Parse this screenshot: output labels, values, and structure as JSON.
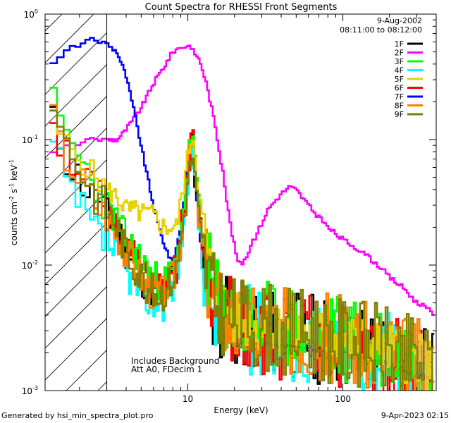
{
  "chart_data": {
    "type": "line",
    "title": "Count Spectra for RHESSI Front Segments",
    "xlabel": "Energy (keV)",
    "ylabel": "counts cm^-2 s^-1 keV^-1",
    "xscale": "log",
    "yscale": "log",
    "xlim": [
      1.2,
      400
    ],
    "ylim": [
      0.001,
      1
    ],
    "x_ticks": [
      {
        "value": 10,
        "label": "10"
      },
      {
        "value": 100,
        "label": "100"
      }
    ],
    "y_ticks": [
      {
        "value": 0.001,
        "base": "10",
        "exp": "-3"
      },
      {
        "value": 0.01,
        "base": "10",
        "exp": "-2"
      },
      {
        "value": 0.1,
        "base": "10",
        "exp": "-1"
      },
      {
        "value": 1,
        "base": "10",
        "exp": "0"
      }
    ],
    "shaded_region": {
      "x_range": [
        1.2,
        3.0
      ],
      "pattern": "hatched"
    },
    "legend_position": "top-right",
    "date": "9-Aug-2002",
    "time_range": "08:11:00 to 08:12:00",
    "annotations": [
      "Includes Background",
      "Att A0, FDecim 1"
    ],
    "series": [
      {
        "name": "1F",
        "color": "#000000",
        "seed": 11,
        "noise": 0.33,
        "points": [
          [
            1.3,
            0.15
          ],
          [
            1.5,
            0.1
          ],
          [
            1.7,
            0.065
          ],
          [
            2.0,
            0.05
          ],
          [
            2.4,
            0.035
          ],
          [
            3.0,
            0.025
          ],
          [
            3.5,
            0.02
          ],
          [
            4.0,
            0.013
          ],
          [
            5.0,
            0.008
          ],
          [
            6.0,
            0.006
          ],
          [
            7.0,
            0.006
          ],
          [
            8.5,
            0.009
          ],
          [
            10.0,
            0.05
          ],
          [
            10.7,
            0.1
          ],
          [
            11.5,
            0.03
          ],
          [
            13.0,
            0.008
          ],
          [
            15.0,
            0.004
          ],
          [
            20.0,
            0.003
          ],
          [
            30.0,
            0.0028
          ],
          [
            50.0,
            0.0025
          ],
          [
            100.0,
            0.0022
          ],
          [
            200.0,
            0.0018
          ],
          [
            380.0,
            0.0013
          ]
        ]
      },
      {
        "name": "2F",
        "color": "#ff00ff",
        "seed": 0,
        "noise": 0.04,
        "points": [
          [
            1.3,
            0.075
          ],
          [
            1.5,
            0.085
          ],
          [
            2.0,
            0.095
          ],
          [
            2.5,
            0.1
          ],
          [
            3.0,
            0.1
          ],
          [
            3.5,
            0.1
          ],
          [
            4.0,
            0.12
          ],
          [
            5.0,
            0.18
          ],
          [
            6.0,
            0.28
          ],
          [
            7.0,
            0.38
          ],
          [
            8.0,
            0.5
          ],
          [
            9.0,
            0.55
          ],
          [
            10.0,
            0.55
          ],
          [
            11.0,
            0.5
          ],
          [
            12.0,
            0.42
          ],
          [
            13.0,
            0.3
          ],
          [
            14.0,
            0.2
          ],
          [
            15.0,
            0.13
          ],
          [
            16.0,
            0.08
          ],
          [
            17.0,
            0.05
          ],
          [
            18.0,
            0.03
          ],
          [
            19.0,
            0.02
          ],
          [
            20.0,
            0.014
          ],
          [
            21.0,
            0.011
          ],
          [
            22.0,
            0.01
          ],
          [
            24.0,
            0.012
          ],
          [
            28.0,
            0.018
          ],
          [
            33.0,
            0.028
          ],
          [
            40.0,
            0.037
          ],
          [
            45.0,
            0.042
          ],
          [
            50.0,
            0.04
          ],
          [
            60.0,
            0.03
          ],
          [
            70.0,
            0.024
          ],
          [
            80.0,
            0.02
          ],
          [
            100.0,
            0.016
          ],
          [
            120.0,
            0.014
          ],
          [
            140.0,
            0.012
          ],
          [
            170.0,
            0.01
          ],
          [
            200.0,
            0.008
          ],
          [
            250.0,
            0.0065
          ],
          [
            300.0,
            0.005
          ],
          [
            350.0,
            0.0045
          ],
          [
            390.0,
            0.004
          ]
        ]
      },
      {
        "name": "3F",
        "color": "#00ff00",
        "seed": 23,
        "noise": 0.33,
        "points": [
          [
            1.3,
            0.22
          ],
          [
            1.5,
            0.12
          ],
          [
            1.7,
            0.1
          ],
          [
            2.0,
            0.07
          ],
          [
            2.4,
            0.05
          ],
          [
            3.0,
            0.03
          ],
          [
            3.5,
            0.022
          ],
          [
            4.0,
            0.016
          ],
          [
            5.0,
            0.011
          ],
          [
            6.0,
            0.008
          ],
          [
            7.0,
            0.007
          ],
          [
            8.5,
            0.01
          ],
          [
            10.0,
            0.06
          ],
          [
            10.7,
            0.12
          ],
          [
            11.5,
            0.035
          ],
          [
            13.0,
            0.01
          ],
          [
            15.0,
            0.005
          ],
          [
            20.0,
            0.0033
          ],
          [
            30.0,
            0.003
          ],
          [
            50.0,
            0.0028
          ],
          [
            100.0,
            0.0024
          ],
          [
            200.0,
            0.002
          ],
          [
            380.0,
            0.0015
          ]
        ]
      },
      {
        "name": "4F",
        "color": "#00ffff",
        "seed": 37,
        "noise": 0.33,
        "points": [
          [
            1.3,
            0.1
          ],
          [
            1.5,
            0.06
          ],
          [
            1.7,
            0.04
          ],
          [
            2.0,
            0.03
          ],
          [
            2.4,
            0.02
          ],
          [
            3.0,
            0.015
          ],
          [
            3.5,
            0.012
          ],
          [
            4.0,
            0.009
          ],
          [
            5.0,
            0.006
          ],
          [
            6.0,
            0.005
          ],
          [
            7.0,
            0.005
          ],
          [
            8.5,
            0.008
          ],
          [
            10.0,
            0.045
          ],
          [
            10.7,
            0.09
          ],
          [
            11.5,
            0.028
          ],
          [
            13.0,
            0.008
          ],
          [
            15.0,
            0.004
          ],
          [
            20.0,
            0.003
          ],
          [
            30.0,
            0.0027
          ],
          [
            50.0,
            0.0024
          ],
          [
            100.0,
            0.002
          ],
          [
            200.0,
            0.0017
          ],
          [
            380.0,
            0.0012
          ]
        ]
      },
      {
        "name": "5F",
        "color": "#e6d200",
        "seed": 5,
        "noise": 0.2,
        "points": [
          [
            1.3,
            0.16
          ],
          [
            1.5,
            0.11
          ],
          [
            1.7,
            0.09
          ],
          [
            2.0,
            0.07
          ],
          [
            2.4,
            0.055
          ],
          [
            3.0,
            0.04
          ],
          [
            3.5,
            0.035
          ],
          [
            4.0,
            0.028
          ],
          [
            5.0,
            0.026
          ],
          [
            6.0,
            0.025
          ],
          [
            7.0,
            0.02
          ],
          [
            8.5,
            0.02
          ],
          [
            10.0,
            0.07
          ],
          [
            10.7,
            0.12
          ],
          [
            11.5,
            0.05
          ],
          [
            13.0,
            0.015
          ],
          [
            15.0,
            0.006
          ],
          [
            20.0,
            0.0035
          ],
          [
            30.0,
            0.003
          ],
          [
            50.0,
            0.0028
          ],
          [
            100.0,
            0.0025
          ],
          [
            200.0,
            0.002
          ],
          [
            380.0,
            0.0015
          ]
        ]
      },
      {
        "name": "6F",
        "color": "#ff0000",
        "seed": 51,
        "noise": 0.33,
        "points": [
          [
            1.3,
            0.18
          ],
          [
            1.5,
            0.1
          ],
          [
            1.7,
            0.08
          ],
          [
            2.0,
            0.06
          ],
          [
            2.4,
            0.04
          ],
          [
            3.0,
            0.028
          ],
          [
            3.5,
            0.02
          ],
          [
            4.0,
            0.014
          ],
          [
            5.0,
            0.009
          ],
          [
            6.0,
            0.007
          ],
          [
            7.0,
            0.006
          ],
          [
            8.5,
            0.009
          ],
          [
            10.0,
            0.055
          ],
          [
            10.7,
            0.13
          ],
          [
            11.5,
            0.03
          ],
          [
            13.0,
            0.009
          ],
          [
            15.0,
            0.0045
          ],
          [
            20.0,
            0.003
          ],
          [
            30.0,
            0.0027
          ],
          [
            50.0,
            0.0024
          ],
          [
            100.0,
            0.0021
          ],
          [
            200.0,
            0.0017
          ],
          [
            380.0,
            0.0013
          ]
        ]
      },
      {
        "name": "7F",
        "color": "#0000ff",
        "seed": 0,
        "noise": 0.04,
        "points": [
          [
            1.3,
            0.38
          ],
          [
            1.5,
            0.45
          ],
          [
            1.7,
            0.52
          ],
          [
            2.0,
            0.58
          ],
          [
            2.4,
            0.62
          ],
          [
            2.8,
            0.6
          ],
          [
            3.0,
            0.58
          ],
          [
            3.5,
            0.5
          ],
          [
            4.0,
            0.32
          ],
          [
            4.5,
            0.17
          ],
          [
            5.0,
            0.09
          ],
          [
            5.5,
            0.05
          ],
          [
            6.0,
            0.03
          ],
          [
            6.5,
            0.02
          ],
          [
            7.0,
            0.015
          ],
          [
            8.0,
            0.01
          ],
          [
            9.0,
            0.02
          ],
          [
            10.0,
            0.06
          ],
          [
            10.7,
            0.1
          ],
          [
            11.5,
            0.03
          ],
          [
            13.0,
            0.006
          ],
          [
            15.0,
            0.003
          ],
          [
            20.0,
            0.0025
          ],
          [
            30.0,
            0.0024
          ],
          [
            50.0,
            0.0022
          ],
          [
            100.0,
            0.002
          ],
          [
            200.0,
            0.0016
          ],
          [
            380.0,
            0.0012
          ]
        ]
      },
      {
        "name": "8F",
        "color": "#ff8000",
        "seed": 67,
        "noise": 0.33,
        "points": [
          [
            1.3,
            0.2
          ],
          [
            1.5,
            0.09
          ],
          [
            1.7,
            0.07
          ],
          [
            2.0,
            0.05
          ],
          [
            2.4,
            0.035
          ],
          [
            3.0,
            0.025
          ],
          [
            3.5,
            0.018
          ],
          [
            4.0,
            0.013
          ],
          [
            5.0,
            0.008
          ],
          [
            6.0,
            0.006
          ],
          [
            7.0,
            0.006
          ],
          [
            8.5,
            0.009
          ],
          [
            10.0,
            0.05
          ],
          [
            10.7,
            0.11
          ],
          [
            11.5,
            0.03
          ],
          [
            13.0,
            0.009
          ],
          [
            15.0,
            0.0045
          ],
          [
            20.0,
            0.0032
          ],
          [
            30.0,
            0.003
          ],
          [
            50.0,
            0.0027
          ],
          [
            100.0,
            0.0023
          ],
          [
            200.0,
            0.0019
          ],
          [
            380.0,
            0.0014
          ]
        ]
      },
      {
        "name": "9F",
        "color": "#808000",
        "seed": 83,
        "noise": 0.33,
        "points": [
          [
            1.3,
            0.3
          ],
          [
            1.5,
            0.12
          ],
          [
            1.7,
            0.09
          ],
          [
            2.0,
            0.06
          ],
          [
            2.4,
            0.04
          ],
          [
            3.0,
            0.028
          ],
          [
            3.5,
            0.02
          ],
          [
            4.0,
            0.013
          ],
          [
            5.0,
            0.008
          ],
          [
            6.0,
            0.006
          ],
          [
            7.0,
            0.006
          ],
          [
            8.5,
            0.009
          ],
          [
            10.0,
            0.045
          ],
          [
            10.7,
            0.08
          ],
          [
            11.5,
            0.03
          ],
          [
            13.0,
            0.009
          ],
          [
            15.0,
            0.0045
          ],
          [
            20.0,
            0.0032
          ],
          [
            30.0,
            0.003
          ],
          [
            50.0,
            0.0027
          ],
          [
            100.0,
            0.0023
          ],
          [
            200.0,
            0.0019
          ],
          [
            380.0,
            0.0014
          ]
        ]
      }
    ]
  },
  "footer": {
    "left": "Generated by hsi_min_spectra_plot.pro",
    "right": "9-Apr-2023 02:15"
  }
}
